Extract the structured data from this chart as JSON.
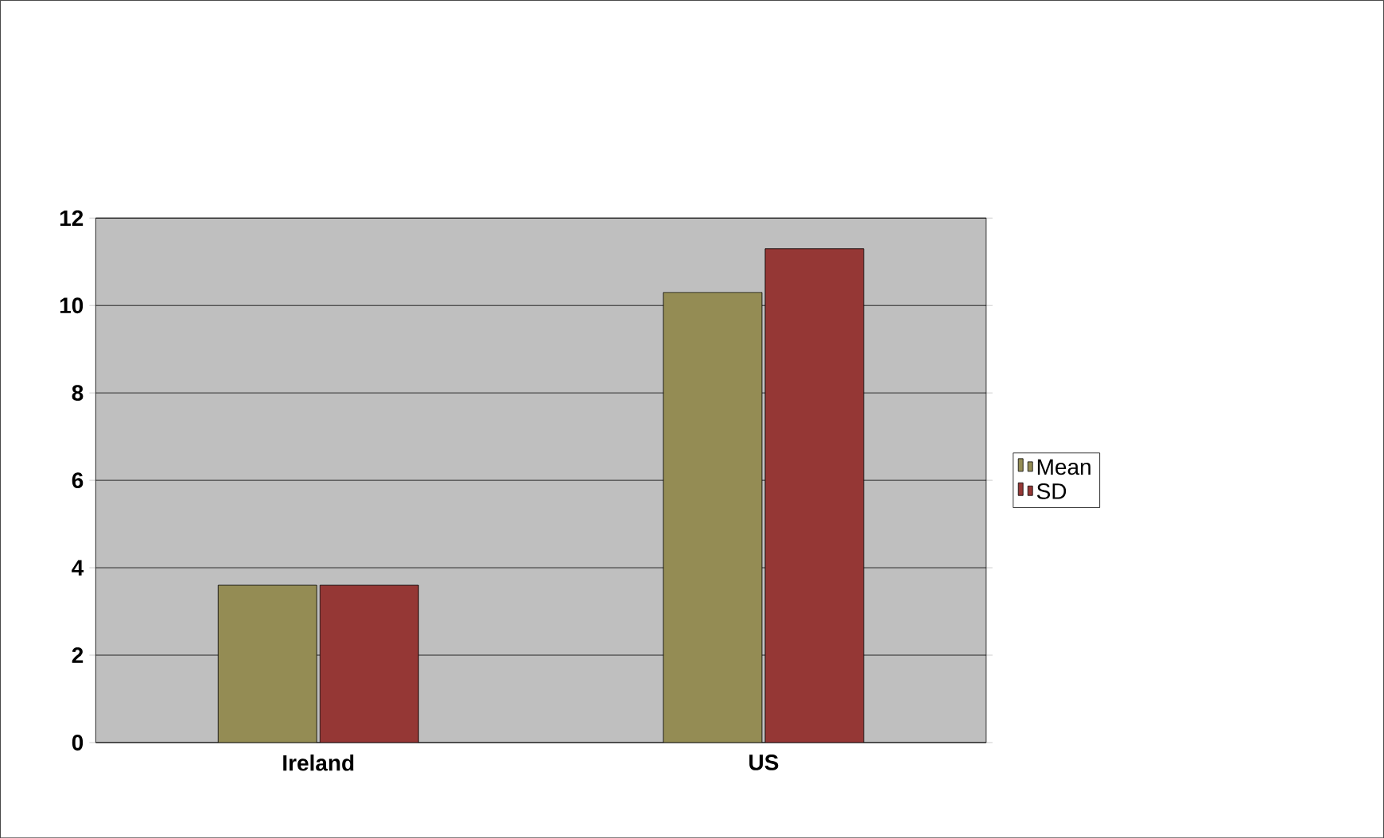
{
  "chart_data": {
    "type": "bar",
    "categories": [
      "Ireland",
      "US"
    ],
    "series": [
      {
        "name": "Mean",
        "color": "#948c54",
        "values": [
          3.6,
          10.3
        ]
      },
      {
        "name": "SD",
        "color": "#953735",
        "values": [
          3.6,
          11.3
        ]
      }
    ],
    "ylim": [
      0,
      12
    ],
    "yticks": [
      0,
      2,
      4,
      6,
      8,
      10,
      12
    ],
    "grid": "y",
    "legend": "right"
  }
}
